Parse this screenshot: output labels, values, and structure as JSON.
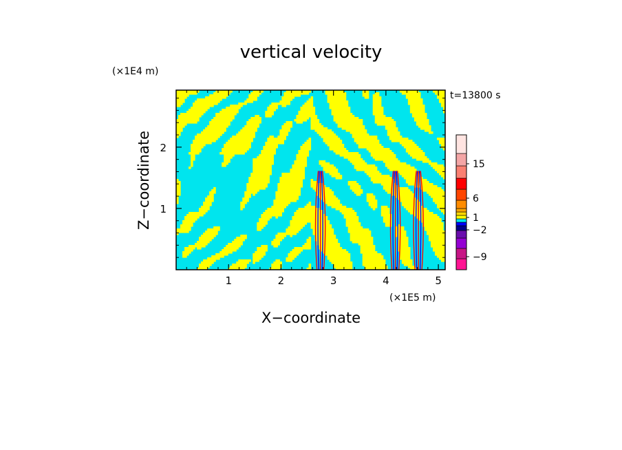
{
  "chart_data": {
    "type": "heatmap",
    "title": "vertical velocity",
    "xlabel": "X−coordinate",
    "ylabel": "Z−coordinate",
    "x_unit": "(×1E5 m)",
    "y_unit": "(×1E4 m)",
    "time_label": "t=13800 s",
    "xlim": [
      0,
      5.13
    ],
    "ylim": [
      0,
      2.93
    ],
    "x_ticks": [
      "1",
      "2",
      "3",
      "4",
      "5"
    ],
    "y_ticks": [
      "1",
      "2"
    ],
    "colorbar": {
      "tick_labels": [
        "15",
        "6",
        "1",
        "−2",
        "−9"
      ],
      "levels": [
        {
          "color": "#ff1493"
        },
        {
          "color": "#c71585"
        },
        {
          "color": "#9400d3"
        },
        {
          "color": "#6a0dad"
        },
        {
          "color": "#00008b"
        },
        {
          "color": "#0000ff"
        },
        {
          "color": "#00e5ee"
        },
        {
          "color": "#ffff00"
        },
        {
          "color": "#ffd700"
        },
        {
          "color": "#ffa500"
        },
        {
          "color": "#ff8c00"
        },
        {
          "color": "#ff4500"
        },
        {
          "color": "#ff0000"
        },
        {
          "color": "#fa8072"
        },
        {
          "color": "#f4a6a6"
        },
        {
          "color": "#ffe4e1"
        }
      ]
    },
    "field_colors": {
      "positive": "#ffff00",
      "negative": "#00e5ee",
      "strong_up": "#ff0000",
      "strong_down": "#0000ff"
    },
    "strong_columns_x": [
      2.75,
      4.18,
      4.62
    ]
  }
}
